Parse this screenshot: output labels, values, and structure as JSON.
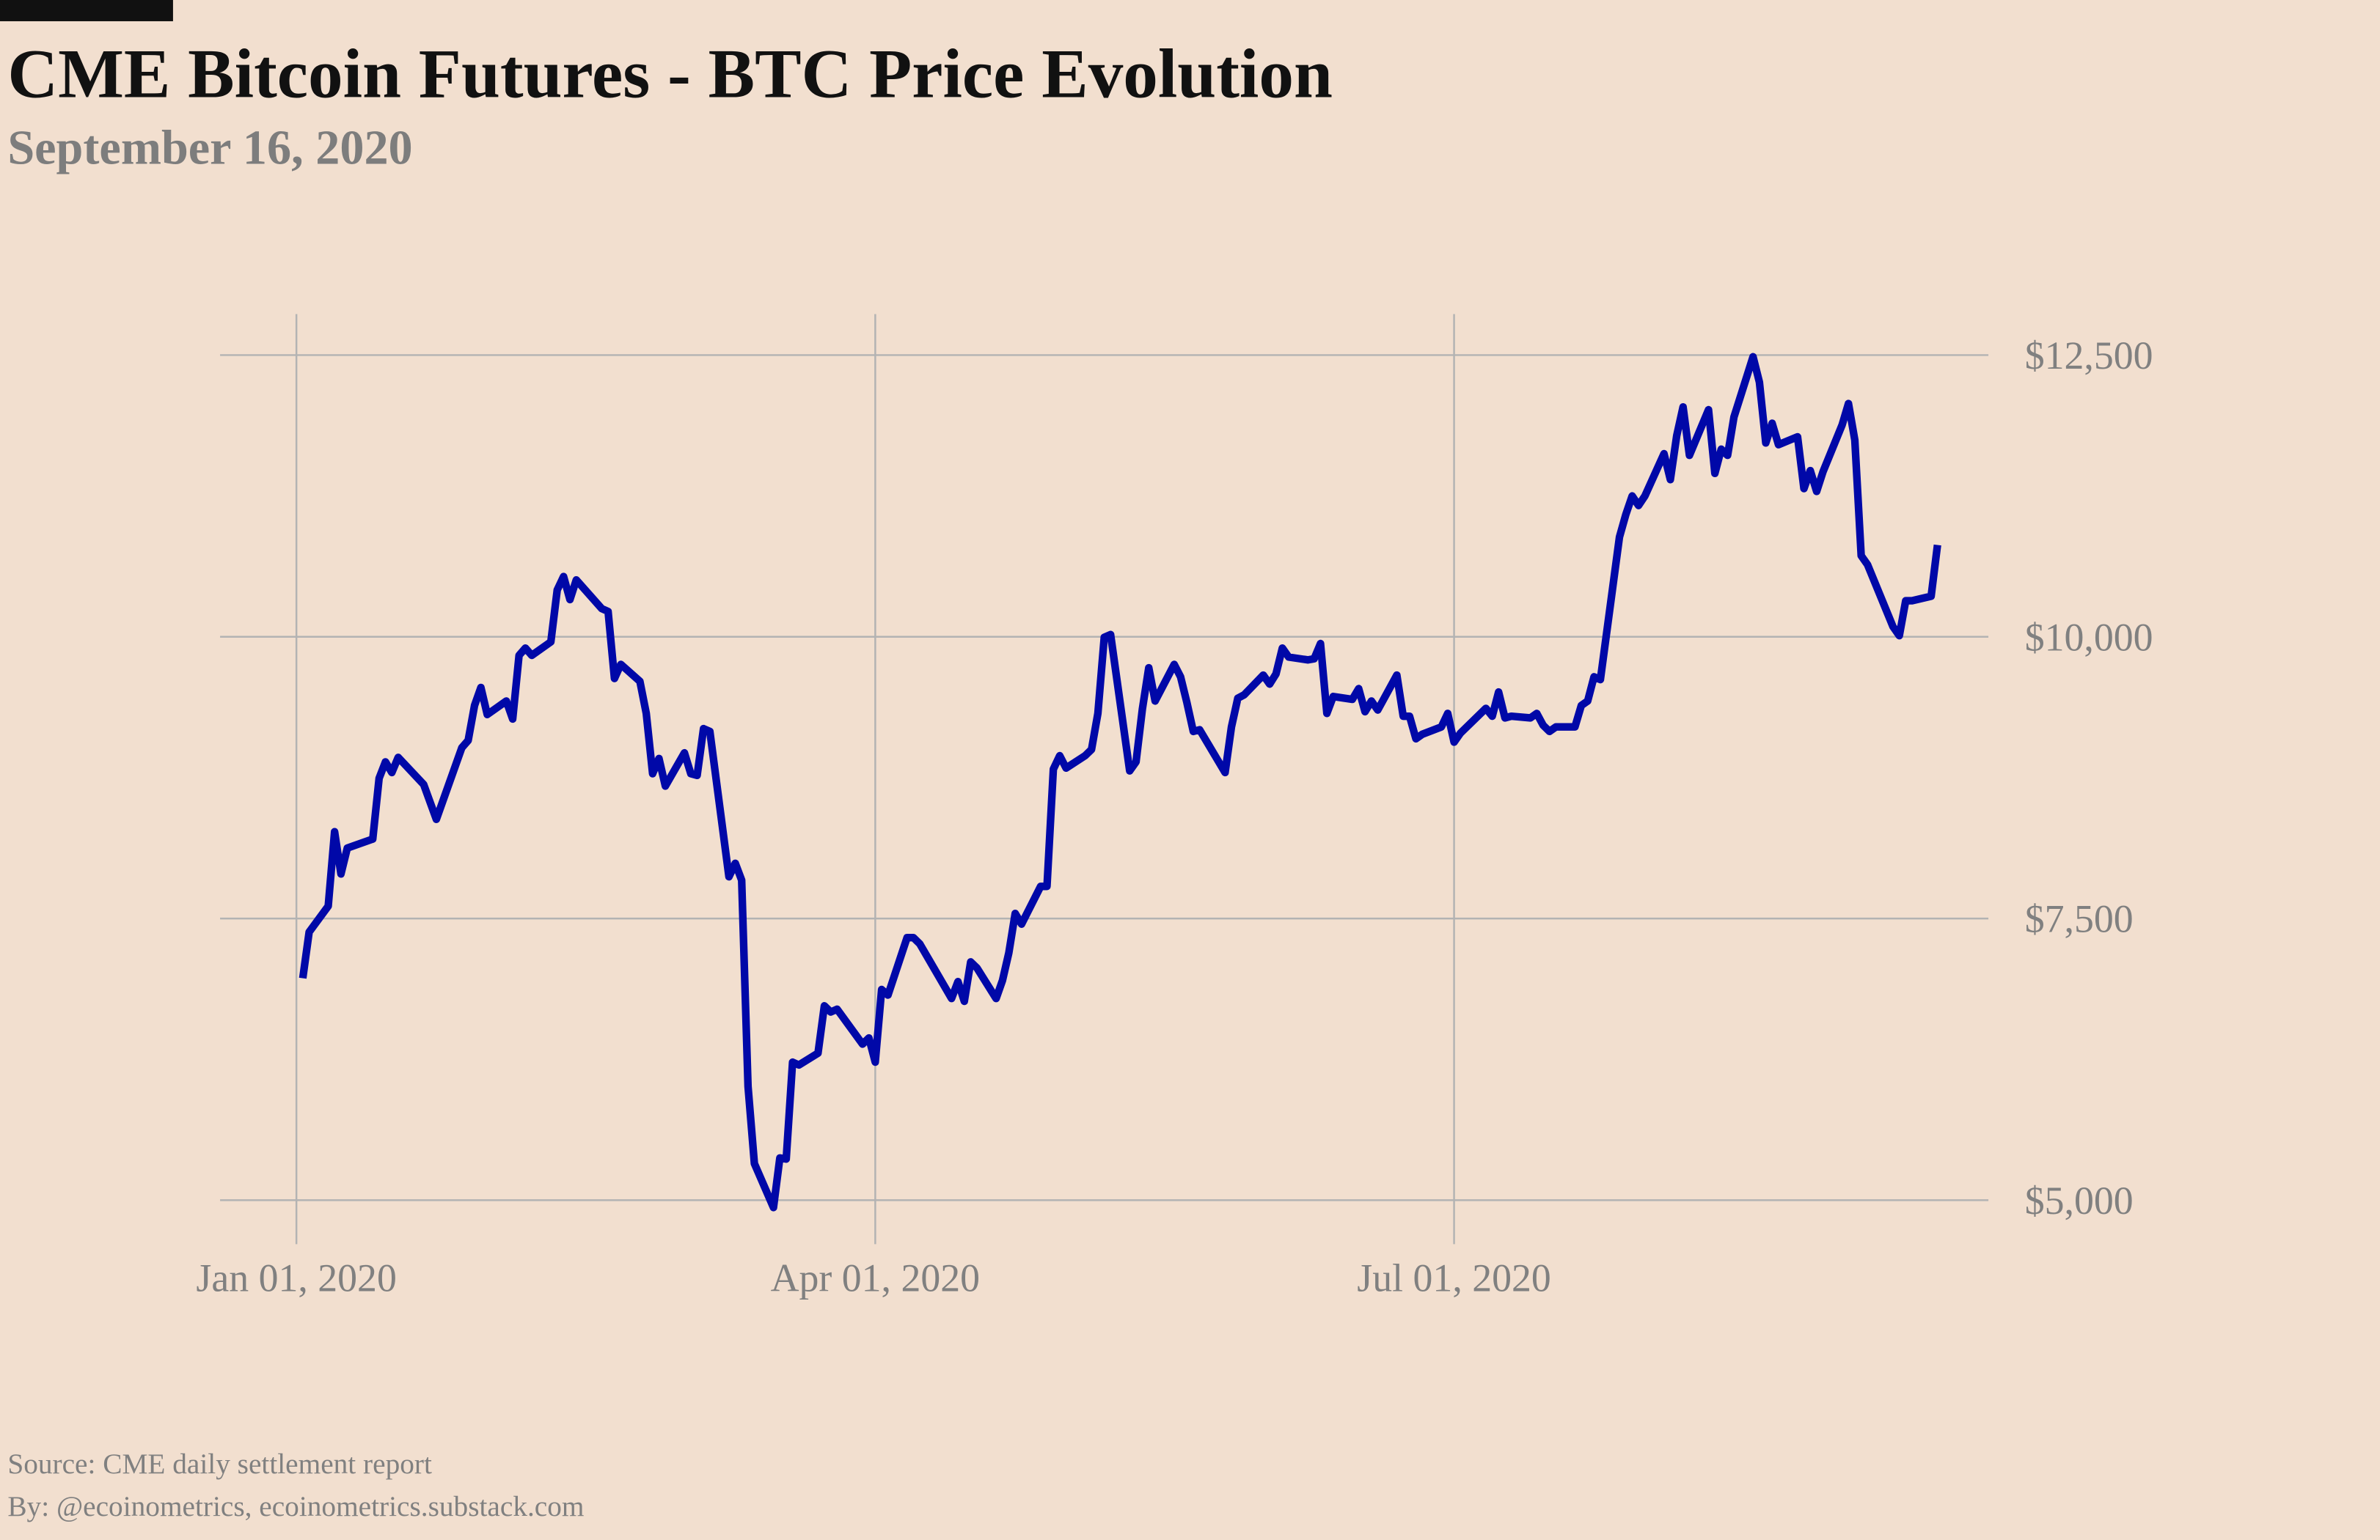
{
  "chart_data": {
    "type": "line",
    "title": "CME Bitcoin Futures - BTC Price Evolution",
    "subtitle": "September 16, 2020",
    "source": "Source: CME daily settlement report",
    "byline": "By: @ecoinometrics, ecoinometrics.substack.com",
    "color": "#0008a8",
    "grid": true,
    "y_axis_side": "right",
    "xlim": [
      "2019-12-20",
      "2020-09-23"
    ],
    "xticks": [
      {
        "value": "2020-01-01",
        "label": "Jan 01, 2020"
      },
      {
        "value": "2020-04-01",
        "label": "Apr 01, 2020"
      },
      {
        "value": "2020-07-01",
        "label": "Jul 01, 2020"
      }
    ],
    "ylim": [
      4610,
      12864
    ],
    "yticks": [
      {
        "value": 5000,
        "label": "$5,000"
      },
      {
        "value": 7500,
        "label": "$7,500"
      },
      {
        "value": 10000,
        "label": "$10,000"
      },
      {
        "value": 12500,
        "label": "$12,500"
      }
    ],
    "x": [
      "2020-01-02",
      "2020-01-03",
      "2020-01-06",
      "2020-01-07",
      "2020-01-08",
      "2020-01-09",
      "2020-01-13",
      "2020-01-14",
      "2020-01-15",
      "2020-01-16",
      "2020-01-17",
      "2020-01-21",
      "2020-01-23",
      "2020-01-27",
      "2020-01-28",
      "2020-01-29",
      "2020-01-30",
      "2020-01-31",
      "2020-02-03",
      "2020-02-04",
      "2020-02-05",
      "2020-02-06",
      "2020-02-07",
      "2020-02-10",
      "2020-02-11",
      "2020-02-12",
      "2020-02-13",
      "2020-02-14",
      "2020-02-18",
      "2020-02-19",
      "2020-02-20",
      "2020-02-21",
      "2020-02-24",
      "2020-02-25",
      "2020-02-26",
      "2020-02-27",
      "2020-02-28",
      "2020-03-02",
      "2020-03-03",
      "2020-03-04",
      "2020-03-05",
      "2020-03-06",
      "2020-03-09",
      "2020-03-10",
      "2020-03-11",
      "2020-03-12",
      "2020-03-13",
      "2020-03-16",
      "2020-03-17",
      "2020-03-18",
      "2020-03-19",
      "2020-03-20",
      "2020-03-23",
      "2020-03-24",
      "2020-03-25",
      "2020-03-26",
      "2020-03-30",
      "2020-03-31",
      "2020-04-01",
      "2020-04-02",
      "2020-04-03",
      "2020-04-06",
      "2020-04-07",
      "2020-04-08",
      "2020-04-13",
      "2020-04-14",
      "2020-04-15",
      "2020-04-16",
      "2020-04-17",
      "2020-04-20",
      "2020-04-21",
      "2020-04-22",
      "2020-04-23",
      "2020-04-24",
      "2020-04-27",
      "2020-04-28",
      "2020-04-29",
      "2020-04-30",
      "2020-05-01",
      "2020-05-04",
      "2020-05-05",
      "2020-05-06",
      "2020-05-07",
      "2020-05-08",
      "2020-05-11",
      "2020-05-12",
      "2020-05-13",
      "2020-05-14",
      "2020-05-15",
      "2020-05-18",
      "2020-05-19",
      "2020-05-20",
      "2020-05-21",
      "2020-05-22",
      "2020-05-26",
      "2020-05-27",
      "2020-05-28",
      "2020-05-29",
      "2020-06-01",
      "2020-06-02",
      "2020-06-03",
      "2020-06-04",
      "2020-06-05",
      "2020-06-08",
      "2020-06-09",
      "2020-06-10",
      "2020-06-11",
      "2020-06-12",
      "2020-06-15",
      "2020-06-16",
      "2020-06-17",
      "2020-06-18",
      "2020-06-19",
      "2020-06-22",
      "2020-06-23",
      "2020-06-24",
      "2020-06-25",
      "2020-06-26",
      "2020-06-29",
      "2020-06-30",
      "2020-07-01",
      "2020-07-02",
      "2020-07-06",
      "2020-07-07",
      "2020-07-08",
      "2020-07-09",
      "2020-07-10",
      "2020-07-13",
      "2020-07-14",
      "2020-07-15",
      "2020-07-16",
      "2020-07-17",
      "2020-07-20",
      "2020-07-21",
      "2020-07-22",
      "2020-07-23",
      "2020-07-24",
      "2020-07-27",
      "2020-07-28",
      "2020-07-29",
      "2020-07-30",
      "2020-07-31",
      "2020-08-03",
      "2020-08-04",
      "2020-08-05",
      "2020-08-06",
      "2020-08-07",
      "2020-08-10",
      "2020-08-11",
      "2020-08-12",
      "2020-08-13",
      "2020-08-14",
      "2020-08-17",
      "2020-08-18",
      "2020-08-19",
      "2020-08-20",
      "2020-08-21",
      "2020-08-24",
      "2020-08-25",
      "2020-08-26",
      "2020-08-27",
      "2020-08-28",
      "2020-08-31",
      "2020-09-01",
      "2020-09-02",
      "2020-09-03",
      "2020-09-04",
      "2020-09-08",
      "2020-09-09",
      "2020-09-10",
      "2020-09-11",
      "2020-09-14",
      "2020-09-15"
    ],
    "values": [
      6970,
      7380,
      7610,
      8270,
      7895,
      8125,
      8205,
      8745,
      8890,
      8795,
      8930,
      8690,
      8380,
      9015,
      9080,
      9390,
      9550,
      9310,
      9430,
      9270,
      9835,
      9900,
      9835,
      9955,
      10415,
      10535,
      10330,
      10505,
      10250,
      10225,
      9630,
      9755,
      9605,
      9320,
      8785,
      8920,
      8675,
      8970,
      8785,
      8770,
      9185,
      9160,
      7870,
      7990,
      7840,
      6010,
      5325,
      4935,
      5375,
      5365,
      6225,
      6200,
      6305,
      6725,
      6670,
      6695,
      6385,
      6440,
      6225,
      6870,
      6820,
      7330,
      7330,
      7275,
      6790,
      6940,
      6765,
      7115,
      7060,
      6790,
      6950,
      7195,
      7545,
      7450,
      7785,
      7785,
      8825,
      8945,
      8835,
      8945,
      9000,
      9320,
      9995,
      10020,
      8810,
      8890,
      9360,
      9725,
      9430,
      9755,
      9645,
      9415,
      9160,
      9175,
      8795,
      9200,
      9455,
      9485,
      9660,
      9580,
      9670,
      9900,
      9820,
      9795,
      9805,
      9940,
      9320,
      9470,
      9445,
      9540,
      9335,
      9430,
      9350,
      9660,
      9295,
      9295,
      9095,
      9135,
      9200,
      9320,
      9065,
      9145,
      9365,
      9295,
      9510,
      9280,
      9295,
      9280,
      9320,
      9215,
      9160,
      9200,
      9200,
      9390,
      9430,
      9645,
      9620,
      10885,
      11085,
      11250,
      11165,
      11250,
      11625,
      11395,
      11785,
      12040,
      11610,
      12015,
      11450,
      11665,
      11610,
      11950,
      12485,
      12260,
      11720,
      11895,
      11705,
      11775,
      11315,
      11475,
      11290,
      11465,
      11880,
      12070,
      11745,
      10720,
      10640,
      10090,
      10010,
      10320,
      10320,
      10360,
      10815
    ]
  }
}
